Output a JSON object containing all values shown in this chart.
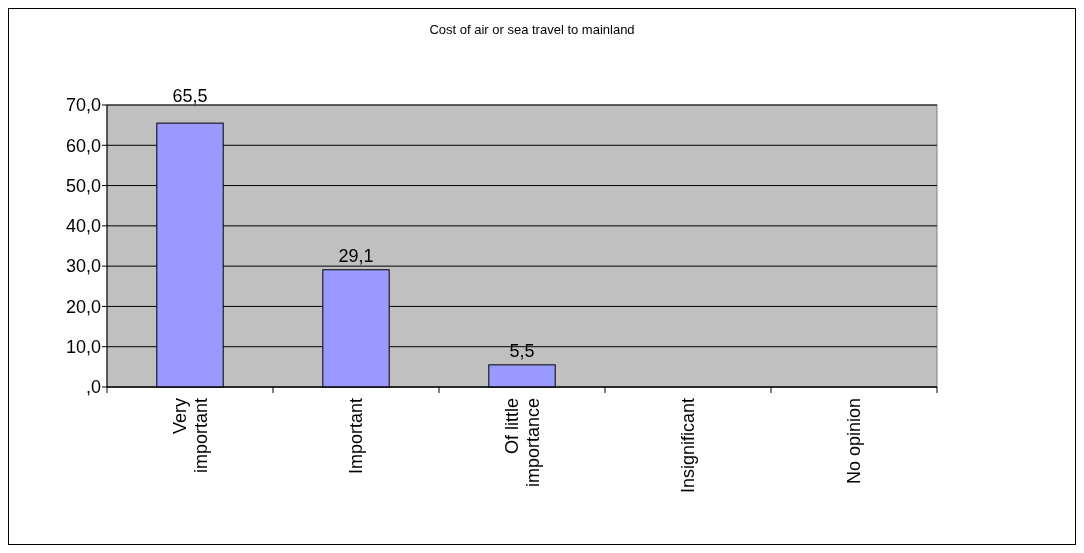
{
  "chart_data": {
    "type": "bar",
    "title": "Cost of air or sea travel to mainland",
    "categories": [
      "Very important",
      "Important",
      "Of little importance",
      "Insignificant",
      "No opinion"
    ],
    "values": [
      65.5,
      29.1,
      5.5,
      0,
      0
    ],
    "value_labels": [
      "65,5",
      "29,1",
      "5,5",
      null,
      null
    ],
    "color": "#9999ff",
    "ylim": [
      0,
      70
    ],
    "yticks": [
      {
        "value": 0,
        "label": ",0"
      },
      {
        "value": 10,
        "label": "10,0"
      },
      {
        "value": 20,
        "label": "20,0"
      },
      {
        "value": 30,
        "label": "30,0"
      },
      {
        "value": 40,
        "label": "40,0"
      },
      {
        "value": 50,
        "label": "50,0"
      },
      {
        "value": 60,
        "label": "60,0"
      },
      {
        "value": 70,
        "label": "70,0"
      }
    ],
    "grid": "y"
  }
}
